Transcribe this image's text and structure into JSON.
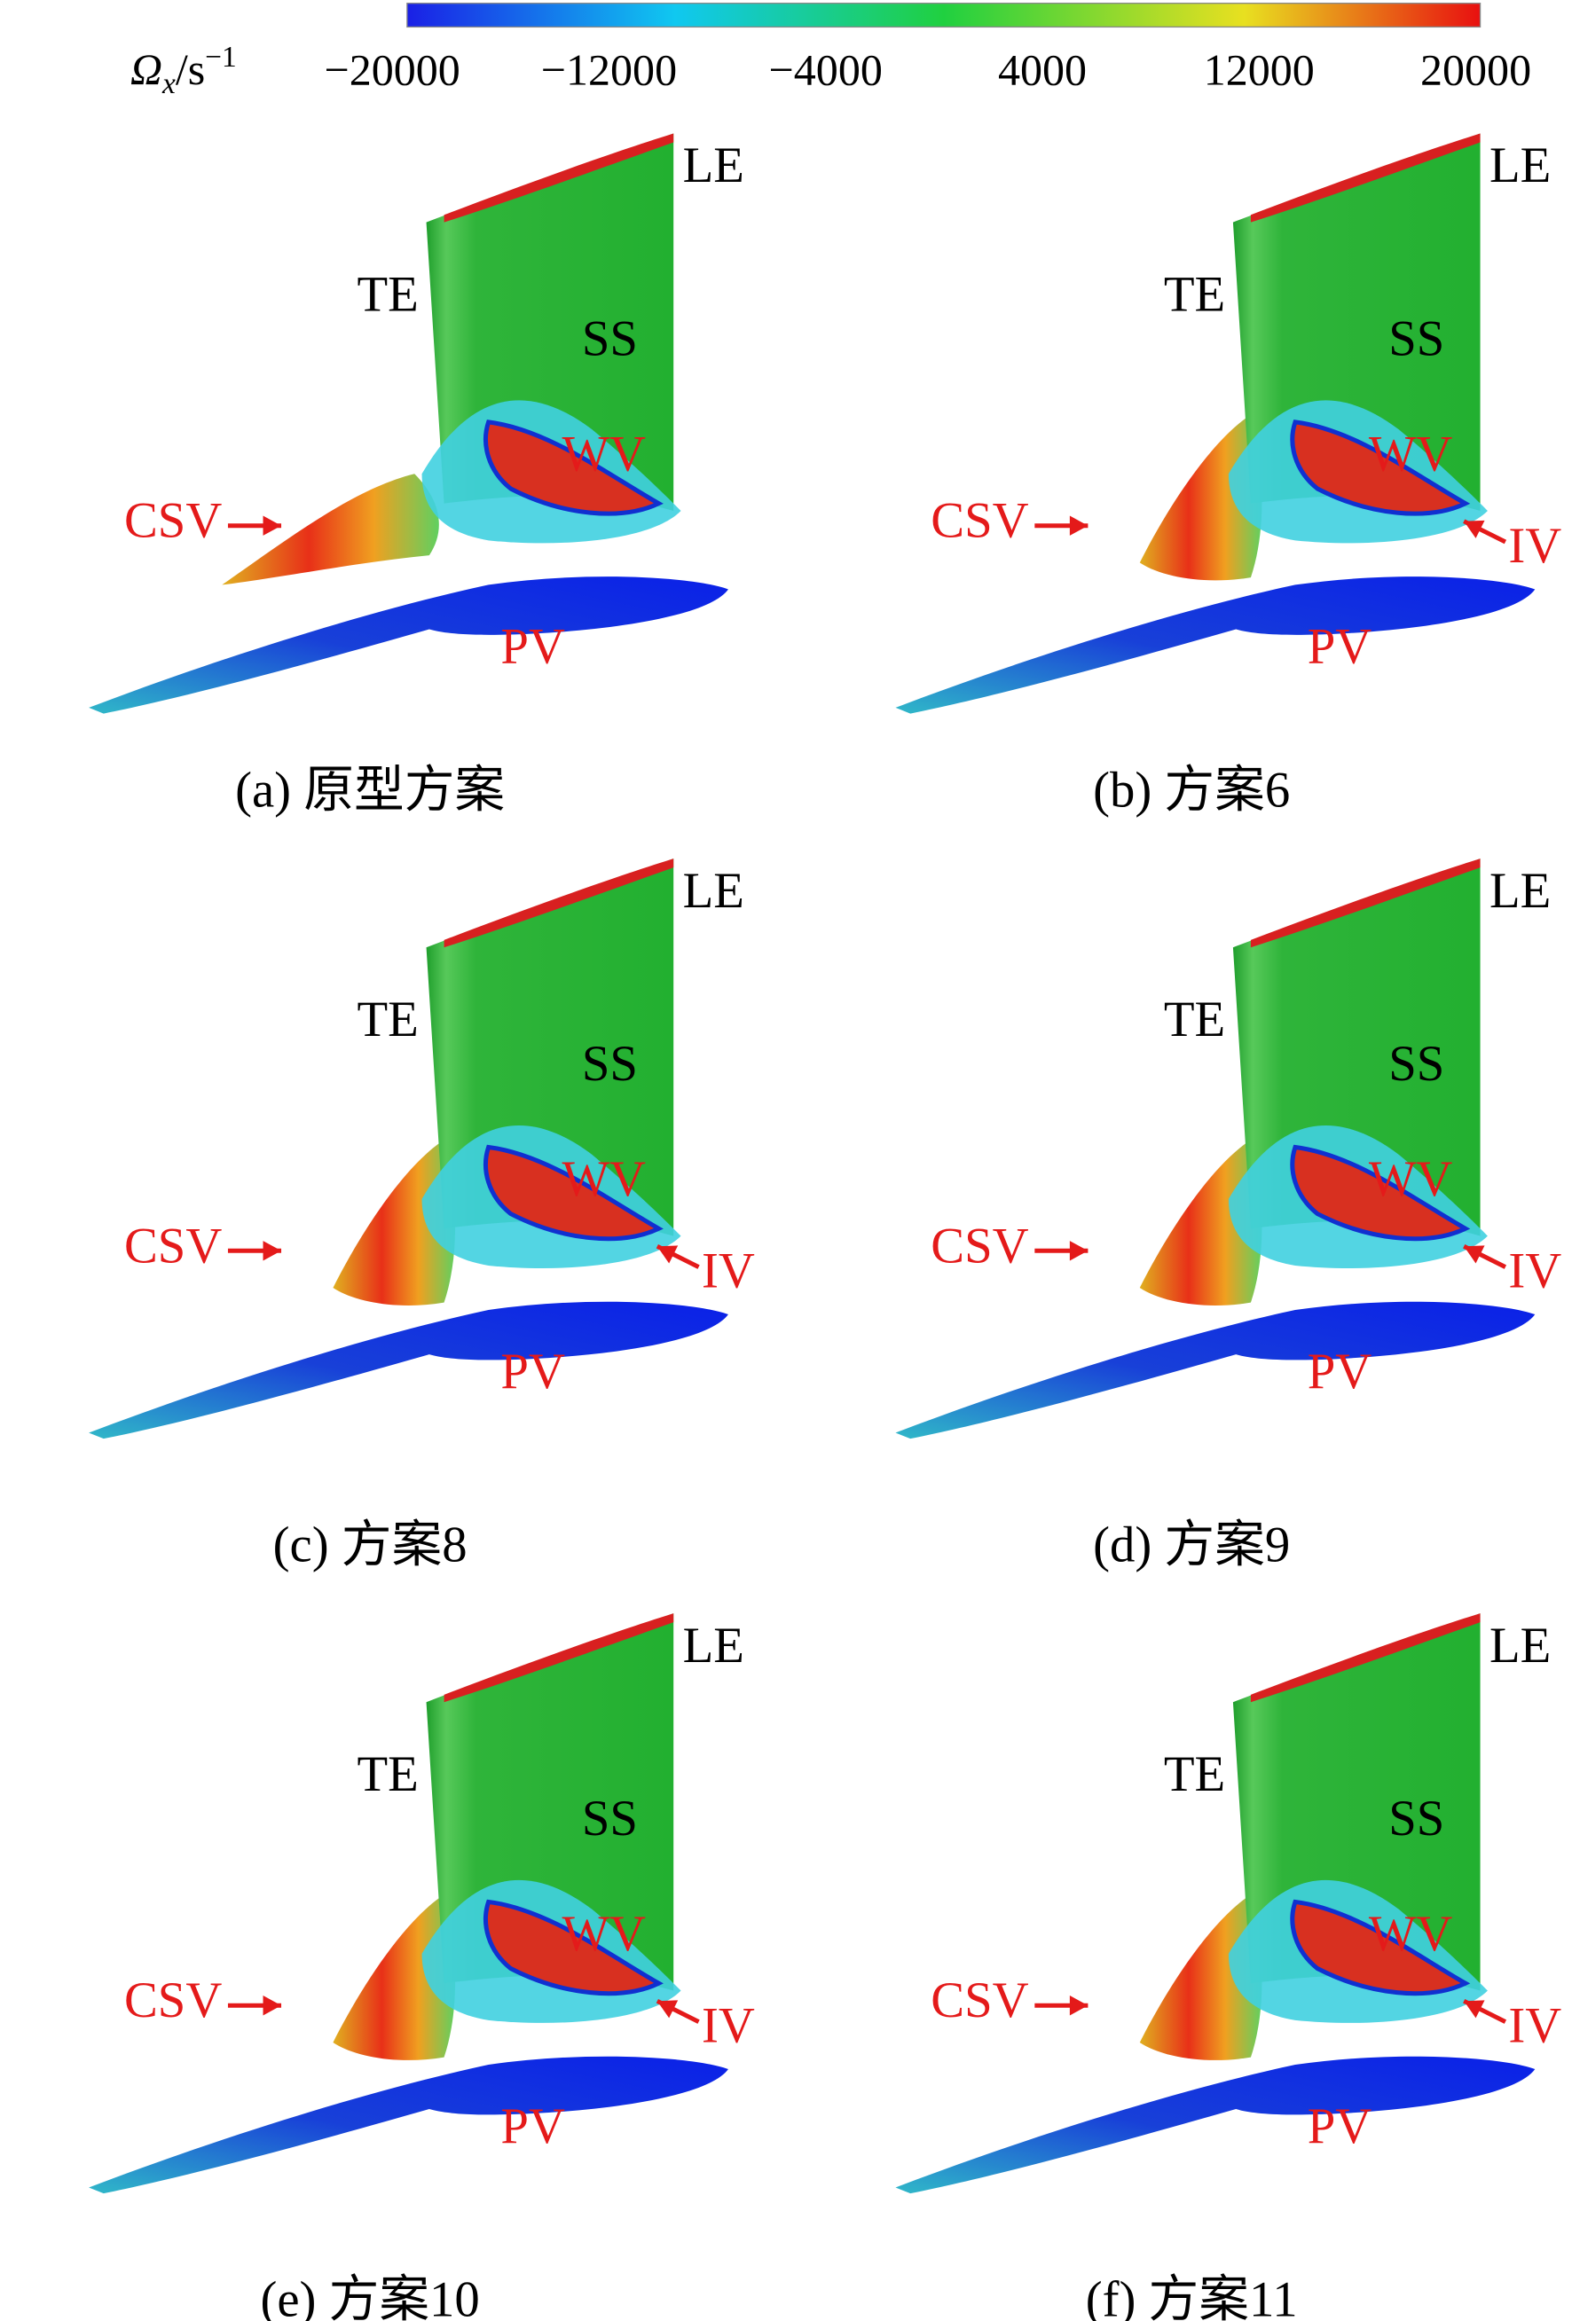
{
  "colorbar": {
    "symbol": "Ω",
    "subscript": "x",
    "unit": "/s",
    "superscript": "−1",
    "range": [
      -20000,
      20000
    ],
    "ticks": [
      {
        "value": -20000,
        "label": "−20000"
      },
      {
        "value": -12000,
        "label": "−12000"
      },
      {
        "value": -4000,
        "label": "−4000"
      },
      4000,
      12000,
      20000
    ]
  },
  "panels": [
    {
      "caption": "(a) 原型方案",
      "labels": {
        "le": "LE",
        "te": "TE",
        "ss": "SS",
        "wv": "WV",
        "csv": "CSV",
        "pv": "PV"
      }
    },
    {
      "caption": "(b) 方案6",
      "labels": {
        "le": "LE",
        "te": "TE",
        "ss": "SS",
        "wv": "WV",
        "csv": "CSV",
        "iv": "IV",
        "pv": "PV"
      }
    },
    {
      "caption": "(c) 方案8",
      "labels": {
        "le": "LE",
        "te": "TE",
        "ss": "SS",
        "wv": "WV",
        "csv": "CSV",
        "iv": "IV",
        "pv": "PV"
      }
    },
    {
      "caption": "(d) 方案9",
      "labels": {
        "le": "LE",
        "te": "TE",
        "ss": "SS",
        "wv": "WV",
        "csv": "CSV",
        "iv": "IV",
        "pv": "PV"
      }
    },
    {
      "caption": "(e) 方案10",
      "labels": {
        "le": "LE",
        "te": "TE",
        "ss": "SS",
        "wv": "WV",
        "csv": "CSV",
        "iv": "IV",
        "pv": "PV"
      }
    },
    {
      "caption": "(f) 方案11",
      "labels": {
        "le": "LE",
        "te": "TE",
        "ss": "SS",
        "wv": "WV",
        "csv": "CSV",
        "iv": "IV",
        "pv": "PV"
      }
    }
  ]
}
